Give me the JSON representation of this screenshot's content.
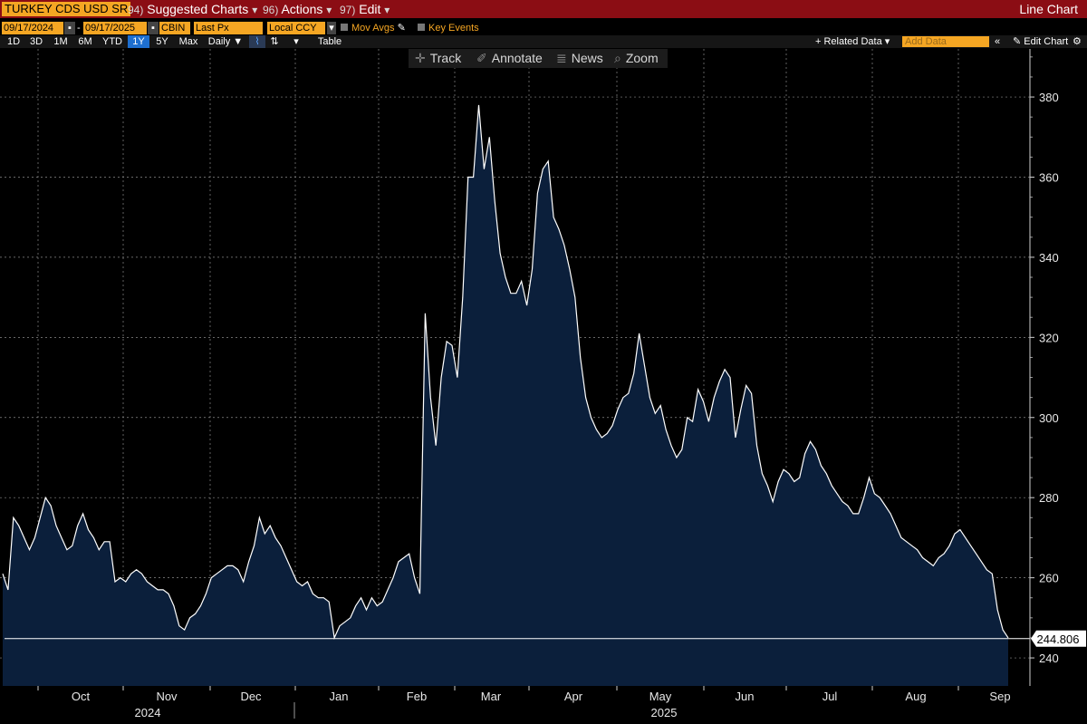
{
  "header": {
    "ticker": "TURKEY CDS USD SR",
    "menu": [
      {
        "num": "94)",
        "label": "Suggested Charts",
        "caret": "▾"
      },
      {
        "num": "96)",
        "label": "Actions",
        "caret": "▾"
      },
      {
        "num": "97)",
        "label": "Edit",
        "caret": "▾"
      }
    ],
    "chart_type": "Line Chart"
  },
  "controls": {
    "start_date": "09/17/2024",
    "dash": "-",
    "end_date": "09/17/2025",
    "source": "CBIN",
    "price_field": "Last Px",
    "currency": "Local CCY",
    "mov_avgs": "Mov Avgs",
    "key_events": "Key Events"
  },
  "periods": [
    "1D",
    "3D",
    "1M",
    "6M",
    "YTD",
    "1Y",
    "5Y",
    "Max"
  ],
  "selected_period": "1Y",
  "frequency": "Daily ▼",
  "table_label": "Table",
  "related_data": "+ Related Data ▾",
  "add_data_placeholder": "Add Data",
  "edit_chart": "✎ Edit Chart",
  "chart_toolbar": {
    "track": "Track",
    "annotate": "Annotate",
    "news": "News",
    "zoom": "Zoom"
  },
  "colors": {
    "header_bg": "#8b0d14",
    "accent_orange": "#f5a623",
    "line": "#ffffff",
    "area_fill": "#0b1f3b",
    "selected_period": "#1e6fd0",
    "grid": "#8a8a8a"
  },
  "chart_data": {
    "type": "area",
    "title": "",
    "series": [
      {
        "values": [
          261,
          257,
          275,
          273,
          270,
          267,
          270,
          275,
          280,
          278,
          273,
          270,
          267,
          268,
          273,
          276,
          272,
          270,
          267,
          269,
          269,
          259,
          260,
          259,
          261,
          262,
          261,
          259,
          258,
          257,
          257,
          256,
          253,
          248,
          247,
          250,
          251,
          253,
          256,
          260,
          261,
          262,
          263,
          263,
          262,
          259,
          264,
          268,
          275,
          271,
          273,
          270,
          268,
          265,
          262,
          259,
          258,
          259,
          256,
          255,
          255,
          254,
          245,
          248,
          249,
          250,
          253,
          255,
          252,
          255,
          253,
          254,
          257,
          260,
          264,
          265,
          266,
          260,
          256,
          326,
          305,
          293,
          310,
          319,
          318,
          310,
          330,
          360,
          360,
          378,
          362,
          370,
          354,
          341,
          335,
          331,
          331,
          334,
          328,
          337,
          356,
          362,
          364,
          350,
          347,
          343,
          337,
          330,
          315,
          305,
          300,
          297,
          295,
          296,
          298,
          302,
          305,
          306,
          311,
          321,
          313,
          305,
          301,
          303,
          297,
          293,
          290,
          292,
          300,
          299,
          307,
          304,
          299,
          305,
          309,
          312,
          310,
          295,
          302,
          308,
          306,
          293,
          286,
          283,
          279,
          284,
          287,
          286,
          284,
          285,
          291,
          294,
          292,
          288,
          286,
          283,
          281,
          279,
          278,
          276,
          276,
          280,
          285,
          281,
          280,
          278,
          276,
          273,
          270,
          269,
          268,
          267,
          265,
          264,
          263,
          265,
          266,
          268,
          271,
          272,
          270,
          268,
          266,
          264,
          262,
          261,
          252,
          247,
          245
        ]
      }
    ],
    "x_labels": [
      "Oct",
      "Nov",
      "Dec",
      "Jan",
      "Feb",
      "Mar",
      "Apr",
      "May",
      "Jun",
      "Jul",
      "Aug",
      "Sep"
    ],
    "year_labels": [
      "2024",
      "2025"
    ],
    "y_ticks": [
      240,
      260,
      280,
      300,
      320,
      340,
      360,
      380
    ],
    "ylim": [
      233,
      392
    ],
    "last_value": 244.806,
    "last_value_label": "244.806",
    "grid": true
  }
}
